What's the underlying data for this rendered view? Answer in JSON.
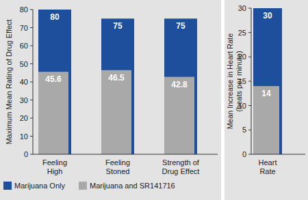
{
  "chart_data": [
    {
      "type": "bar",
      "y_label": "Maximum Mean Rating of Drug Effect",
      "categories": [
        "Feeling\nHigh",
        "Feeling\nStoned",
        "Strength of\nDrug Effect"
      ],
      "series": [
        {
          "name": "Marijuana Only",
          "color": "#1d4f9c",
          "values": [
            80,
            75,
            75
          ]
        },
        {
          "name": "Marijuana and SR141716",
          "color": "#a9a9a9",
          "values": [
            45.6,
            46.5,
            42.8
          ]
        }
      ],
      "ylim": [
        0,
        80
      ],
      "yticks": [
        0,
        10,
        20,
        30,
        40,
        50,
        60,
        70,
        80
      ],
      "grid": false,
      "data_labels": true,
      "legend": "bottom"
    },
    {
      "type": "bar",
      "y_label": "Mean Increase in Heart Rate\n(beats per minute)",
      "categories": [
        "Heart\nRate"
      ],
      "series": [
        {
          "color": "#1d4f9c",
          "values": [
            30
          ]
        },
        {
          "color": "#a9a9a9",
          "values": [
            14
          ]
        }
      ],
      "ylim": [
        0,
        30
      ],
      "yticks": [
        0,
        5,
        10,
        15,
        20,
        25,
        30
      ],
      "grid": false,
      "data_labels": true
    }
  ]
}
